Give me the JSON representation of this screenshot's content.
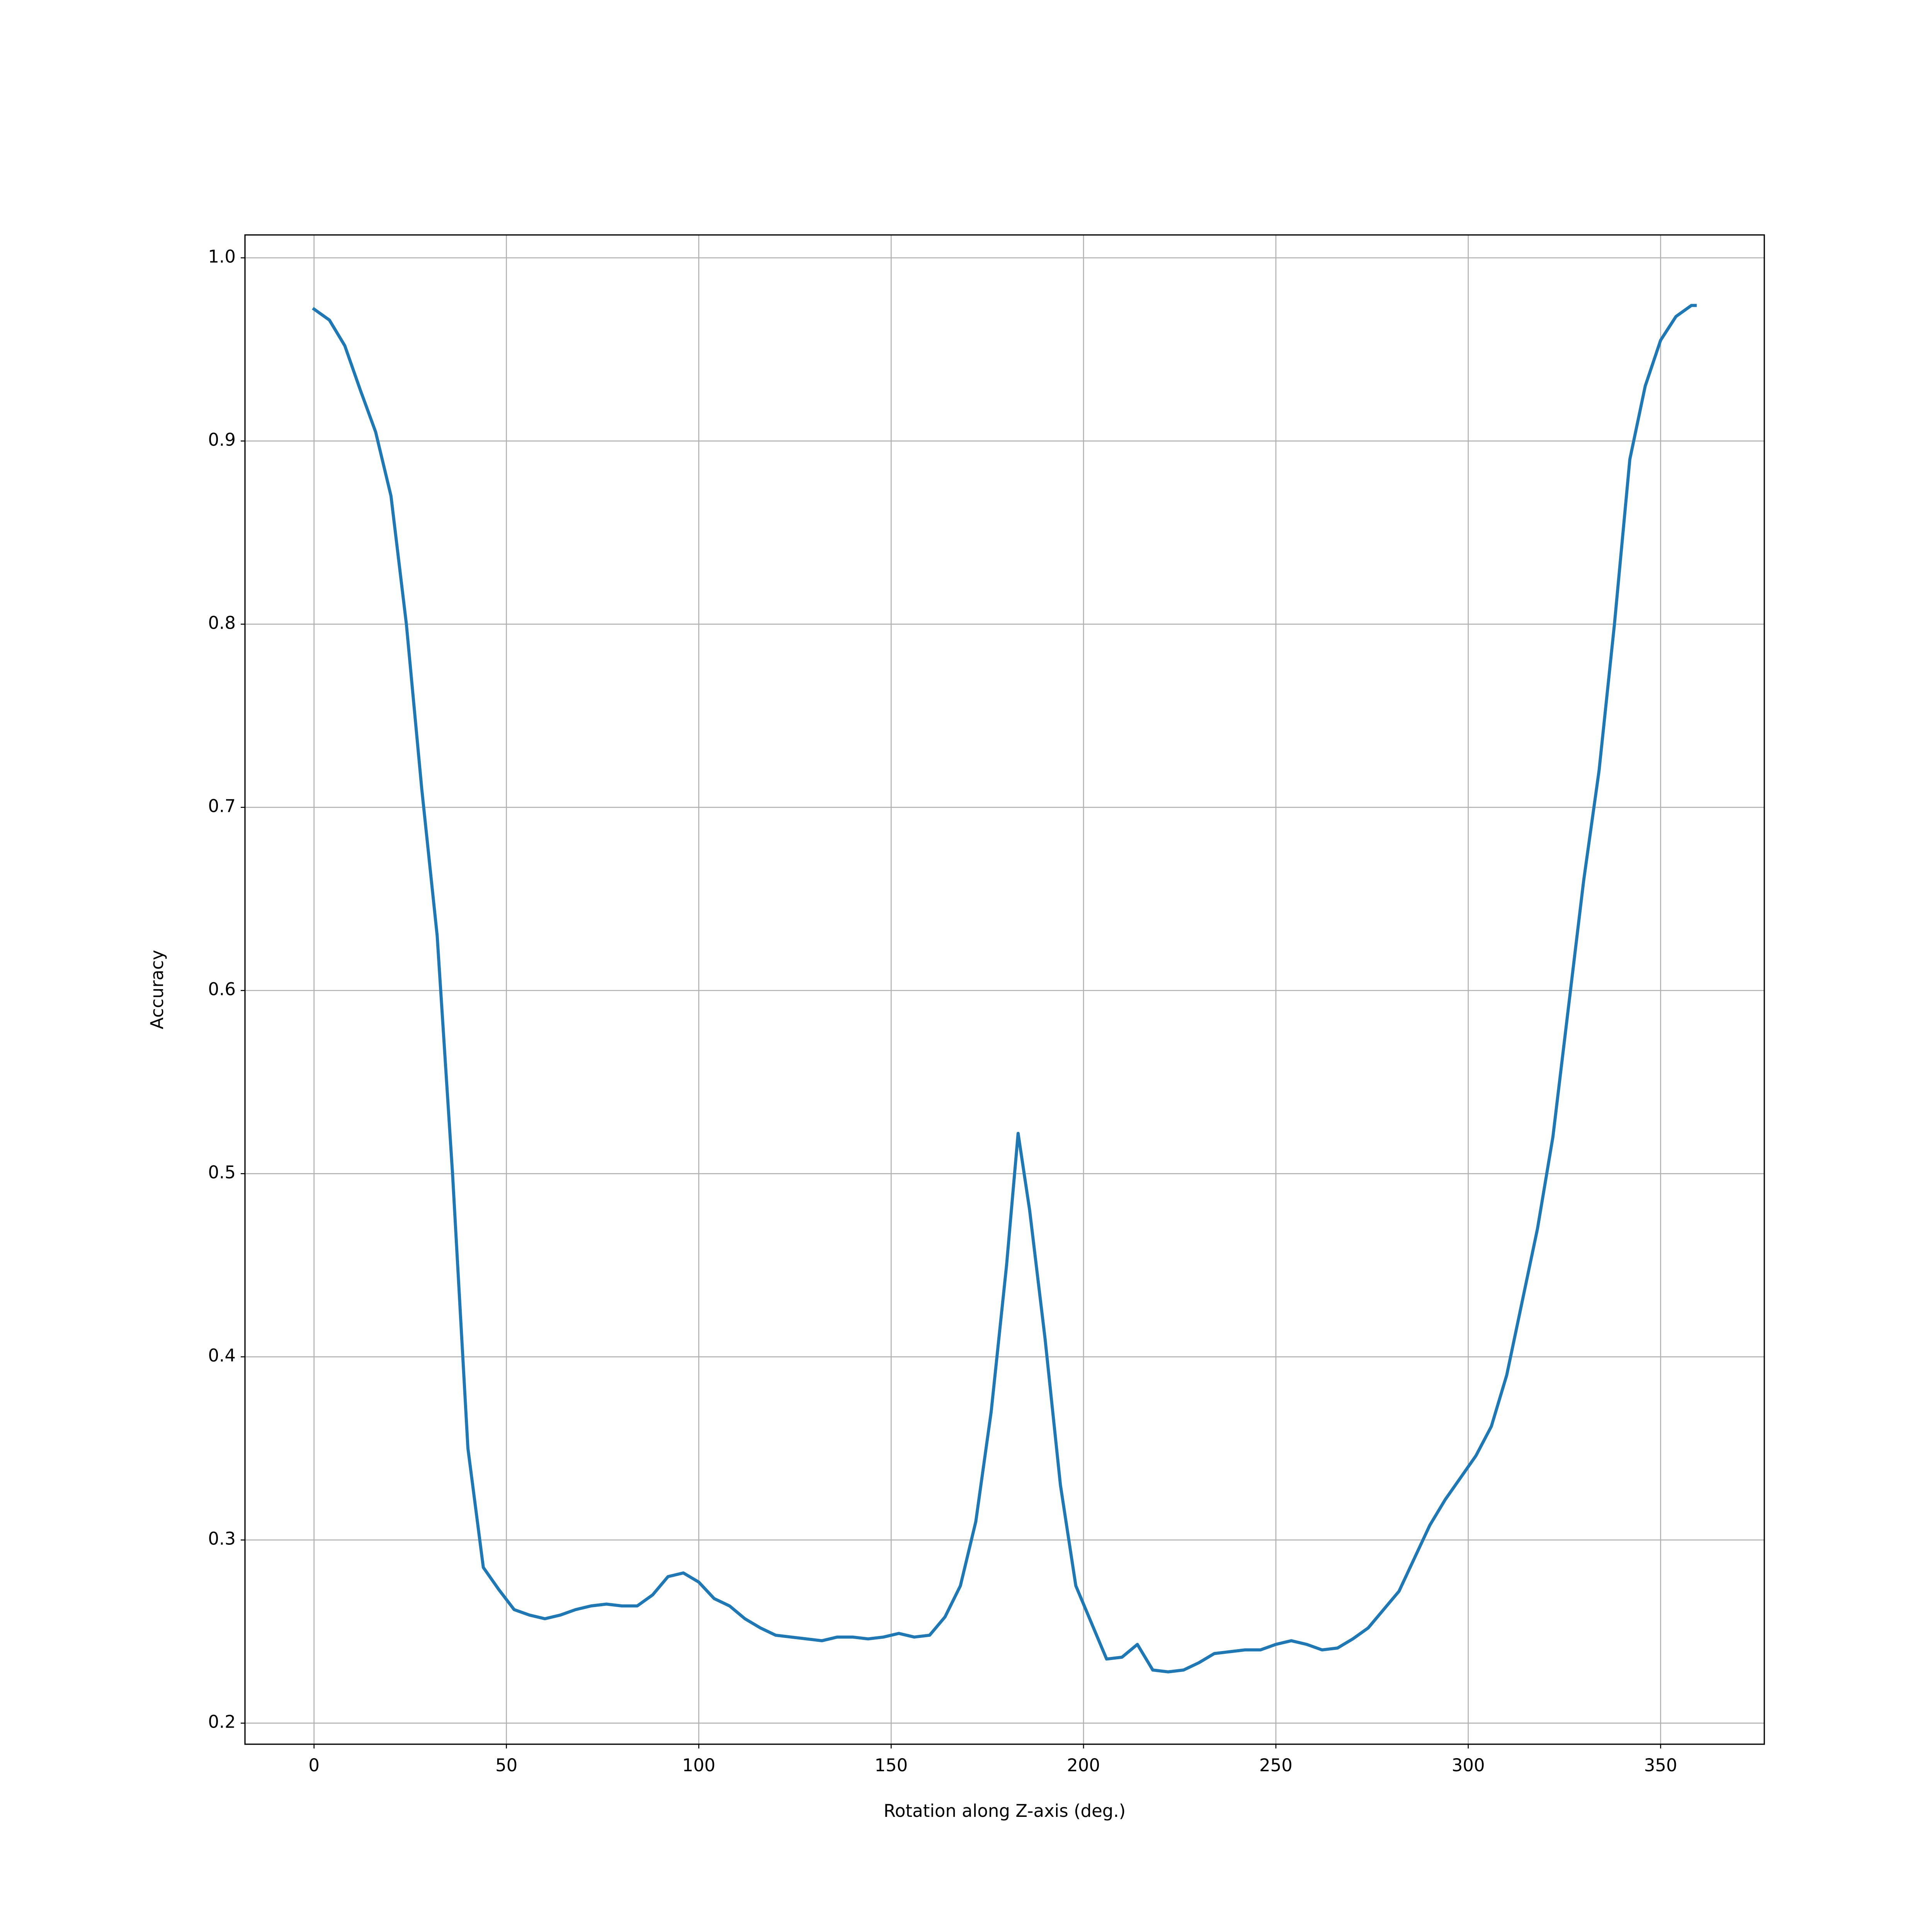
{
  "chart_data": {
    "type": "line",
    "xlabel": "Rotation along Z-axis (deg.)",
    "ylabel": "Accuracy",
    "x": [
      0,
      4,
      8,
      12,
      16,
      20,
      24,
      28,
      32,
      36,
      40,
      44,
      48,
      52,
      56,
      60,
      64,
      68,
      72,
      76,
      80,
      84,
      88,
      92,
      96,
      100,
      104,
      108,
      112,
      116,
      120,
      124,
      128,
      132,
      136,
      140,
      144,
      148,
      152,
      156,
      160,
      164,
      168,
      172,
      176,
      180,
      183,
      186,
      190,
      194,
      198,
      202,
      206,
      210,
      214,
      218,
      222,
      226,
      230,
      234,
      238,
      242,
      246,
      250,
      254,
      258,
      262,
      266,
      270,
      274,
      278,
      282,
      286,
      290,
      294,
      298,
      302,
      306,
      310,
      314,
      318,
      322,
      326,
      330,
      334,
      338,
      342,
      346,
      350,
      354,
      358,
      359
    ],
    "series": [
      {
        "name": "Accuracy",
        "color": "#1f77b4",
        "values": [
          0.972,
          0.966,
          0.952,
          0.928,
          0.905,
          0.87,
          0.8,
          0.71,
          0.63,
          0.5,
          0.35,
          0.285,
          0.273,
          0.262,
          0.259,
          0.257,
          0.259,
          0.262,
          0.264,
          0.265,
          0.264,
          0.264,
          0.27,
          0.28,
          0.282,
          0.277,
          0.268,
          0.264,
          0.257,
          0.252,
          0.248,
          0.247,
          0.246,
          0.245,
          0.247,
          0.247,
          0.246,
          0.247,
          0.249,
          0.247,
          0.248,
          0.258,
          0.275,
          0.31,
          0.37,
          0.45,
          0.522,
          0.48,
          0.41,
          0.33,
          0.275,
          0.255,
          0.235,
          0.236,
          0.243,
          0.229,
          0.228,
          0.229,
          0.233,
          0.238,
          0.239,
          0.24,
          0.24,
          0.243,
          0.245,
          0.243,
          0.24,
          0.241,
          0.246,
          0.252,
          0.262,
          0.272,
          0.29,
          0.308,
          0.322,
          0.334,
          0.346,
          0.362,
          0.39,
          0.43,
          0.47,
          0.52,
          0.59,
          0.66,
          0.72,
          0.8,
          0.89,
          0.93,
          0.955,
          0.968,
          0.974,
          0.974
        ]
      }
    ],
    "xlim": [
      -17.95,
      376.95
    ],
    "xticks": [
      0,
      50,
      100,
      150,
      200,
      250,
      300,
      350
    ],
    "ylim": [
      0.1885,
      1.0125
    ],
    "yticks": [
      0.2,
      0.3,
      0.4,
      0.5,
      0.6,
      0.7,
      0.8,
      0.9,
      {
        "value": 1,
        "label": "1.0"
      }
    ],
    "grid": true
  }
}
